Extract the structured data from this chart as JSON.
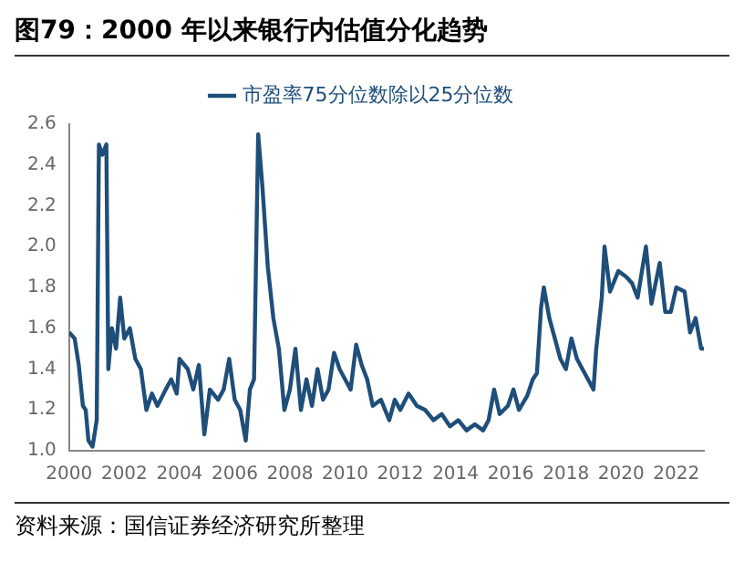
{
  "chart_data": {
    "type": "line",
    "title": "图79：2000 年以来银行内估值分化趋势",
    "annotations": [
      "资料来源：国信证券经济研究所整理"
    ],
    "x": [
      2000.0,
      2000.2,
      2000.35,
      2000.5,
      2000.6,
      2000.7,
      2000.85,
      2001.0,
      2001.08,
      2001.2,
      2001.35,
      2001.42,
      2001.55,
      2001.7,
      2001.85,
      2002.0,
      2002.2,
      2002.4,
      2002.6,
      2002.8,
      2003.0,
      2003.2,
      2003.5,
      2003.7,
      2003.9,
      2004.0,
      2004.3,
      2004.5,
      2004.7,
      2004.9,
      2005.1,
      2005.4,
      2005.6,
      2005.8,
      2006.0,
      2006.2,
      2006.4,
      2006.55,
      2006.7,
      2006.85,
      2007.0,
      2007.2,
      2007.4,
      2007.6,
      2007.8,
      2008.0,
      2008.2,
      2008.4,
      2008.6,
      2008.8,
      2009.0,
      2009.2,
      2009.4,
      2009.6,
      2009.8,
      2010.0,
      2010.2,
      2010.4,
      2010.6,
      2010.8,
      2011.0,
      2011.3,
      2011.6,
      2011.8,
      2012.0,
      2012.3,
      2012.6,
      2012.9,
      2013.2,
      2013.5,
      2013.8,
      2014.1,
      2014.4,
      2014.7,
      2015.0,
      2015.2,
      2015.4,
      2015.6,
      2015.9,
      2016.1,
      2016.3,
      2016.6,
      2016.8,
      2016.95,
      2017.1,
      2017.2,
      2017.4,
      2017.6,
      2017.8,
      2018.0,
      2018.2,
      2018.4,
      2018.6,
      2018.8,
      2019.0,
      2019.1,
      2019.3,
      2019.4,
      2019.6,
      2019.9,
      2020.2,
      2020.4,
      2020.6,
      2020.9,
      2021.1,
      2021.4,
      2021.6,
      2021.8,
      2022.0,
      2022.3,
      2022.5,
      2022.7,
      2022.9,
      2023.0
    ],
    "series": [
      {
        "name": "市盈率75分位数除以25分位数",
        "color": "#1f4e79",
        "values": [
          1.58,
          1.55,
          1.42,
          1.22,
          1.2,
          1.05,
          1.02,
          1.15,
          2.5,
          2.45,
          2.5,
          1.4,
          1.6,
          1.5,
          1.75,
          1.55,
          1.6,
          1.45,
          1.4,
          1.2,
          1.28,
          1.22,
          1.3,
          1.35,
          1.28,
          1.45,
          1.4,
          1.3,
          1.42,
          1.08,
          1.3,
          1.25,
          1.3,
          1.45,
          1.25,
          1.2,
          1.05,
          1.3,
          1.35,
          2.55,
          2.3,
          1.9,
          1.65,
          1.5,
          1.2,
          1.3,
          1.5,
          1.2,
          1.35,
          1.22,
          1.4,
          1.25,
          1.3,
          1.48,
          1.4,
          1.35,
          1.3,
          1.52,
          1.42,
          1.35,
          1.22,
          1.25,
          1.15,
          1.25,
          1.2,
          1.28,
          1.22,
          1.2,
          1.15,
          1.18,
          1.12,
          1.15,
          1.1,
          1.13,
          1.1,
          1.15,
          1.3,
          1.18,
          1.22,
          1.3,
          1.2,
          1.27,
          1.35,
          1.38,
          1.7,
          1.8,
          1.65,
          1.55,
          1.45,
          1.4,
          1.55,
          1.45,
          1.4,
          1.35,
          1.3,
          1.5,
          1.75,
          2.0,
          1.78,
          1.88,
          1.85,
          1.82,
          1.75,
          2.0,
          1.72,
          1.92,
          1.68,
          1.68,
          1.8,
          1.78,
          1.58,
          1.65,
          1.5,
          1.5
        ]
      }
    ],
    "xlim": [
      2000,
      2023
    ],
    "xticks": [
      2000,
      2002,
      2004,
      2006,
      2008,
      2010,
      2012,
      2014,
      2016,
      2018,
      2020,
      2022
    ],
    "ylim": [
      1.0,
      2.6
    ],
    "yticks": [
      {
        "value": 1.0,
        "label": "1.0"
      },
      1.2,
      1.4,
      1.6,
      1.8,
      {
        "value": 2.0,
        "label": "2.0"
      },
      2.2,
      2.4,
      2.6
    ],
    "grid": false,
    "legend": "top",
    "marker": "none",
    "line_style": "solid"
  }
}
